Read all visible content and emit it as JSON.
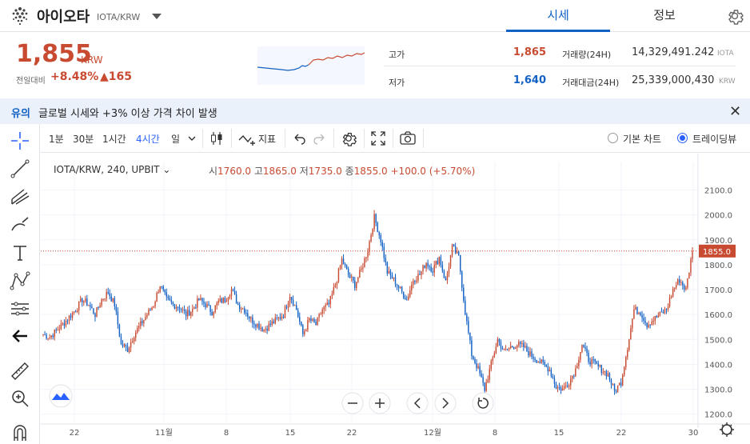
{
  "header": {
    "coin_name": "아이오타",
    "symbol": "IOTA/KRW",
    "tab_quote": "시세",
    "tab_info": "정보",
    "icons": [
      "iota-logo-icon",
      "dropdown-caret-icon",
      "settings-gear-icon"
    ]
  },
  "quote": {
    "price": "1,855",
    "currency": "KRW",
    "prev_label": "전일대비",
    "change_pct": "+8.48%",
    "change_abs": "▲165",
    "high_label": "고가",
    "high": "1,865",
    "low_label": "저가",
    "low": "1,640",
    "volume_label": "거래량(24H)",
    "volume": "14,329,491.242",
    "volume_unit": "IOTA",
    "amount_label": "거래대금(24H)",
    "amount": "25,339,000,430",
    "amount_unit": "KRW"
  },
  "notice": {
    "tag": "유의",
    "text": "글로벌 시세와 +3% 이상 가격 차이 발생",
    "close": "✕"
  },
  "toolbar": {
    "intervals": [
      "1분",
      "30분",
      "1시간",
      "4시간",
      "일"
    ],
    "active_interval": "4시간",
    "indicator_label": "지표",
    "view_basic": "기본 차트",
    "view_trading": "트레이딩뷰",
    "active_view": "트레이딩뷰"
  },
  "legend": {
    "title": "IOTA/KRW, 240, UPBIT",
    "o_key": "시",
    "o": "1760.0",
    "h_key": "고",
    "h": "1865.0",
    "l_key": "저",
    "l": "1735.0",
    "c_key": "종",
    "c": "1855.0",
    "change": "+100.0 (+5.70%)"
  },
  "colors": {
    "up": "#c84a31",
    "down": "#1261c4",
    "accent": "#2962ff",
    "notice_bg": "#eaf1fb"
  },
  "chart_data": {
    "type": "candlestick",
    "title": "IOTA/KRW, 240, UPBIT",
    "y_ticks": [
      "1200.0",
      "1300.0",
      "1400.0",
      "1500.0",
      "1600.0",
      "1700.0",
      "1800.0",
      "1900.0",
      "2000.0",
      "2100.0"
    ],
    "ylim": [
      1170,
      2150
    ],
    "x_ticks": [
      "22",
      "11월",
      "8",
      "15",
      "22",
      "12월",
      "8",
      "15",
      "22",
      "30"
    ],
    "last_price": "1855.0",
    "series_close": [
      1520,
      1510,
      1535,
      1560,
      1590,
      1620,
      1660,
      1640,
      1600,
      1660,
      1690,
      1640,
      1480,
      1460,
      1520,
      1560,
      1600,
      1640,
      1720,
      1660,
      1640,
      1630,
      1600,
      1620,
      1660,
      1640,
      1610,
      1650,
      1660,
      1700,
      1640,
      1620,
      1580,
      1560,
      1540,
      1560,
      1580,
      1600,
      1680,
      1620,
      1520,
      1580,
      1560,
      1620,
      1640,
      1720,
      1820,
      1760,
      1720,
      1780,
      1860,
      1990,
      1900,
      1770,
      1740,
      1700,
      1660,
      1740,
      1760,
      1810,
      1780,
      1830,
      1730,
      1870,
      1830,
      1610,
      1440,
      1380,
      1300,
      1400,
      1500,
      1450,
      1470,
      1480,
      1470,
      1440,
      1420,
      1400,
      1380,
      1310,
      1300,
      1330,
      1380,
      1480,
      1420,
      1400,
      1380,
      1360,
      1290,
      1330,
      1470,
      1620,
      1610,
      1560,
      1580,
      1600,
      1620,
      1700,
      1740,
      1700,
      1855
    ],
    "series_note": "approximate 4h closes, left to right"
  }
}
